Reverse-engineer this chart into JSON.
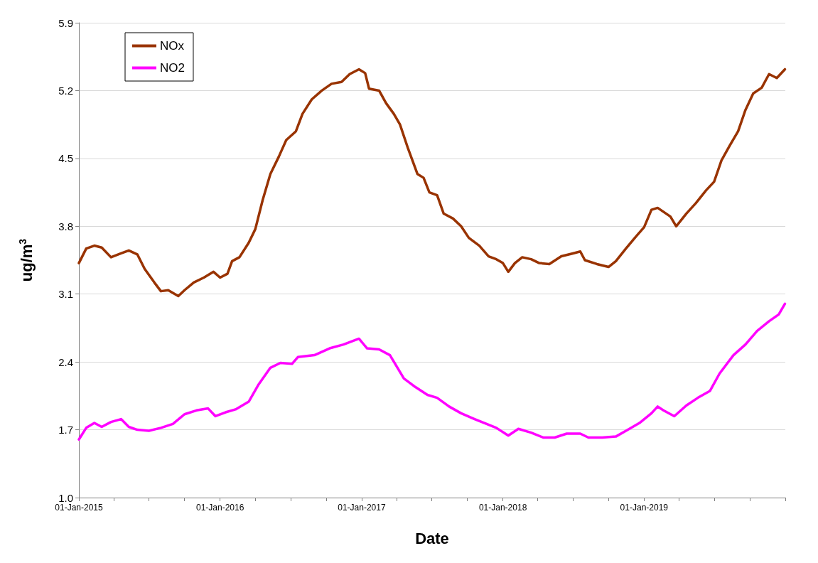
{
  "chart_data": {
    "type": "line",
    "xlabel": "Date",
    "ylabel": "ug/m$^{3}$",
    "xlim": [
      "2015-01-01",
      "2020-01-01"
    ],
    "xticks": [
      {
        "value": "2015-01-01",
        "label": "01-Jan-2015"
      },
      {
        "value": "2015-04-01",
        "label": null
      },
      {
        "value": "2015-07-01",
        "label": null
      },
      {
        "value": "2015-10-01",
        "label": null
      },
      {
        "value": "2016-01-01",
        "label": "01-Jan-2016"
      },
      {
        "value": "2016-04-01",
        "label": null
      },
      {
        "value": "2016-07-01",
        "label": null
      },
      {
        "value": "2016-10-01",
        "label": null
      },
      {
        "value": "2017-01-01",
        "label": "01-Jan-2017"
      },
      {
        "value": "2017-04-01",
        "label": null
      },
      {
        "value": "2017-07-01",
        "label": null
      },
      {
        "value": "2017-10-01",
        "label": null
      },
      {
        "value": "2018-01-01",
        "label": "01-Jan-2018"
      },
      {
        "value": "2018-04-01",
        "label": null
      },
      {
        "value": "2018-07-01",
        "label": null
      },
      {
        "value": "2018-10-01",
        "label": null
      },
      {
        "value": "2019-01-01",
        "label": "01-Jan-2019"
      },
      {
        "value": "2019-04-01",
        "label": null
      },
      {
        "value": "2019-07-01",
        "label": null
      },
      {
        "value": "2019-10-01",
        "label": null
      },
      {
        "value": "2020-01-01",
        "label": null
      }
    ],
    "ylim": [
      1.0,
      5.9
    ],
    "yticks": [
      {
        "value": 1.0,
        "label": "1.0"
      },
      1.7,
      2.4,
      3.1,
      3.8,
      4.5,
      5.2,
      5.9
    ],
    "grid": "y",
    "legend": "top left",
    "marker": "none",
    "line_style": "solid",
    "series": [
      {
        "name": "NOx",
        "color": "#993300",
        "x": [
          "2015-01-01",
          "2015-01-20",
          "2015-02-10",
          "2015-03-01",
          "2015-03-25",
          "2015-04-20",
          "2015-05-10",
          "2015-06-01",
          "2015-06-20",
          "2015-07-15",
          "2015-08-01",
          "2015-08-20",
          "2015-09-15",
          "2015-10-01",
          "2015-10-25",
          "2015-11-20",
          "2015-12-15",
          "2016-01-01",
          "2016-01-20",
          "2016-02-01",
          "2016-02-20",
          "2016-03-15",
          "2016-04-01",
          "2016-04-20",
          "2016-05-10",
          "2016-06-01",
          "2016-06-20",
          "2016-07-15",
          "2016-08-01",
          "2016-08-25",
          "2016-09-20",
          "2016-10-15",
          "2016-11-10",
          "2016-12-01",
          "2016-12-25",
          "2017-01-10",
          "2017-01-20",
          "2017-02-15",
          "2017-03-05",
          "2017-03-25",
          "2017-04-10",
          "2017-05-01",
          "2017-05-25",
          "2017-06-10",
          "2017-06-25",
          "2017-07-15",
          "2017-08-01",
          "2017-08-25",
          "2017-09-15",
          "2017-10-05",
          "2017-11-01",
          "2017-11-25",
          "2017-12-15",
          "2018-01-01",
          "2018-01-15",
          "2018-02-01",
          "2018-02-20",
          "2018-03-15",
          "2018-04-05",
          "2018-05-01",
          "2018-06-01",
          "2018-07-01",
          "2018-07-20",
          "2018-08-01",
          "2018-09-01",
          "2018-10-01",
          "2018-10-20",
          "2018-11-15",
          "2018-12-10",
          "2019-01-01",
          "2019-01-20",
          "2019-02-05",
          "2019-03-10",
          "2019-03-25",
          "2019-04-20",
          "2019-05-15",
          "2019-06-10",
          "2019-07-01",
          "2019-07-20",
          "2019-08-10",
          "2019-09-01",
          "2019-09-20",
          "2019-10-10",
          "2019-11-01",
          "2019-11-20",
          "2019-12-10",
          "2019-12-31"
        ],
        "values": [
          3.42,
          3.57,
          3.6,
          3.58,
          3.48,
          3.52,
          3.55,
          3.51,
          3.36,
          3.22,
          3.13,
          3.14,
          3.08,
          3.14,
          3.22,
          3.27,
          3.33,
          3.27,
          3.31,
          3.44,
          3.48,
          3.63,
          3.77,
          4.07,
          4.34,
          4.52,
          4.69,
          4.78,
          4.96,
          5.11,
          5.2,
          5.27,
          5.29,
          5.37,
          5.42,
          5.38,
          5.22,
          5.2,
          5.07,
          4.96,
          4.85,
          4.6,
          4.34,
          4.3,
          4.15,
          4.12,
          3.93,
          3.88,
          3.8,
          3.68,
          3.6,
          3.49,
          3.46,
          3.42,
          3.33,
          3.42,
          3.48,
          3.46,
          3.42,
          3.41,
          3.49,
          3.52,
          3.54,
          3.45,
          3.41,
          3.38,
          3.44,
          3.57,
          3.69,
          3.79,
          3.97,
          3.99,
          3.9,
          3.8,
          3.93,
          4.04,
          4.17,
          4.26,
          4.48,
          4.63,
          4.78,
          5.0,
          5.17,
          5.23,
          5.37,
          5.33,
          5.42
        ]
      },
      {
        "name": "NO2",
        "color": "#ff00ff",
        "x": [
          "2015-01-01",
          "2015-01-20",
          "2015-02-10",
          "2015-03-01",
          "2015-03-25",
          "2015-04-20",
          "2015-05-10",
          "2015-06-01",
          "2015-07-01",
          "2015-08-01",
          "2015-09-01",
          "2015-10-01",
          "2015-11-01",
          "2015-12-01",
          "2015-12-20",
          "2016-01-15",
          "2016-02-10",
          "2016-03-15",
          "2016-04-10",
          "2016-05-10",
          "2016-06-05",
          "2016-07-05",
          "2016-07-20",
          "2016-09-01",
          "2016-10-10",
          "2016-11-15",
          "2016-12-25",
          "2017-01-15",
          "2017-02-15",
          "2017-03-15",
          "2017-04-20",
          "2017-05-20",
          "2017-06-20",
          "2017-07-15",
          "2017-08-15",
          "2017-09-15",
          "2017-10-20",
          "2017-11-20",
          "2017-12-15",
          "2018-01-15",
          "2018-02-10",
          "2018-03-15",
          "2018-04-15",
          "2018-05-15",
          "2018-06-15",
          "2018-07-20",
          "2018-08-10",
          "2018-09-15",
          "2018-10-20",
          "2018-11-20",
          "2018-12-20",
          "2019-01-20",
          "2019-02-05",
          "2019-02-20",
          "2019-03-20",
          "2019-04-20",
          "2019-05-20",
          "2019-06-20",
          "2019-07-15",
          "2019-08-20",
          "2019-09-20",
          "2019-10-20",
          "2019-11-20",
          "2019-12-15",
          "2019-12-31"
        ],
        "values": [
          1.6,
          1.72,
          1.77,
          1.73,
          1.78,
          1.81,
          1.73,
          1.7,
          1.69,
          1.72,
          1.76,
          1.86,
          1.9,
          1.92,
          1.84,
          1.88,
          1.91,
          1.99,
          2.17,
          2.34,
          2.39,
          2.38,
          2.45,
          2.47,
          2.54,
          2.58,
          2.64,
          2.54,
          2.53,
          2.47,
          2.23,
          2.14,
          2.06,
          2.03,
          1.94,
          1.87,
          1.81,
          1.76,
          1.72,
          1.64,
          1.71,
          1.67,
          1.62,
          1.62,
          1.66,
          1.66,
          1.62,
          1.62,
          1.63,
          1.7,
          1.77,
          1.87,
          1.94,
          1.9,
          1.84,
          1.95,
          2.03,
          2.1,
          2.28,
          2.47,
          2.58,
          2.72,
          2.82,
          2.89,
          3.0
        ]
      }
    ]
  }
}
